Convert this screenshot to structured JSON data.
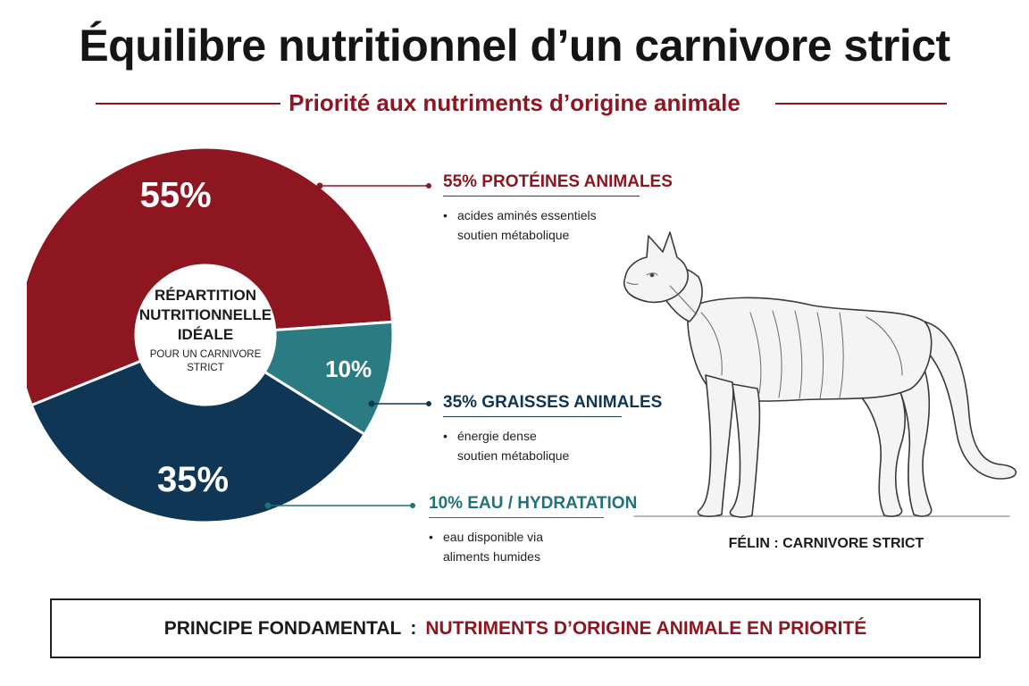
{
  "title": "Équilibre nutritionnel d’un carnivore strict",
  "subtitle": "Priorité aux nutriments d’origine animale",
  "colors": {
    "protein": "#8e1620",
    "fat": "#0f3755",
    "water": "#2a7c82",
    "text": "#1b1b1b"
  },
  "chart_data": {
    "type": "pie",
    "title": "RÉPARTITION NUTRITIONNELLE IDÉALE",
    "subtitle": "POUR UN CARNIVORE STRICT",
    "categories": [
      "PROTÉINES ANIMALES",
      "EAU / HYDRATATION",
      "GRAISSES ANIMALES"
    ],
    "values": [
      55,
      10,
      35
    ],
    "value_labels": [
      "55%",
      "10%",
      "35%"
    ],
    "colors": [
      "#8e1620",
      "#2a7c82",
      "#0f3755"
    ],
    "donut": true
  },
  "center": {
    "main": "RÉPARTITION NUTRITIONNELLE IDÉALE",
    "sub": "POUR UN CARNIVORE STRICT"
  },
  "callouts": {
    "protein": {
      "heading": "55% PROTÉINES ANIMALES",
      "bullet_line1": "acides aminés essentiels",
      "bullet_line2": "soutien métabolique"
    },
    "fat": {
      "heading": "35% GRAISSES ANIMALES",
      "bullet_line1": "énergie dense",
      "bullet_line2": "soutien métabolique"
    },
    "water": {
      "heading": "10% EAU / HYDRATATION",
      "bullet_line1": "eau disponible via",
      "bullet_line2": "aliments humides"
    }
  },
  "illustration": {
    "icon": "cat-illustration",
    "caption": "FÉLIN : CARNIVORE STRICT"
  },
  "principle": {
    "label": "PRINCIPE FONDAMENTAL",
    "separator": ":",
    "value": "NUTRIMENTS D’ORIGINE ANIMALE EN PRIORITÉ"
  }
}
